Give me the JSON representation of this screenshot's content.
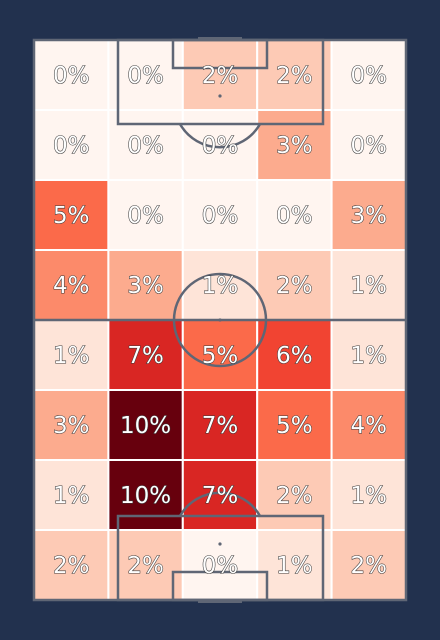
{
  "background_color": "#22314e",
  "line_color": "#5f6675",
  "grid_line_color": "#ffffff",
  "colormap": "Reds",
  "chart_data": {
    "type": "heatmap",
    "title": "",
    "rows": 8,
    "cols": 5,
    "value_format": "percent",
    "values": [
      [
        0,
        0,
        2,
        2,
        0
      ],
      [
        0,
        0,
        0,
        3,
        0
      ],
      [
        5,
        0,
        0,
        0,
        3
      ],
      [
        4,
        3,
        1,
        2,
        1
      ],
      [
        1,
        7,
        5,
        6,
        1
      ],
      [
        3,
        10,
        7,
        5,
        4
      ],
      [
        1,
        10,
        7,
        2,
        1
      ],
      [
        2,
        2,
        0,
        1,
        2
      ]
    ],
    "labels": [
      [
        "0%",
        "0%",
        "2%",
        "2%",
        "0%"
      ],
      [
        "0%",
        "0%",
        "0%",
        "3%",
        "0%"
      ],
      [
        "5%",
        "0%",
        "0%",
        "0%",
        "3%"
      ],
      [
        "4%",
        "3%",
        "1%",
        "2%",
        "1%"
      ],
      [
        "1%",
        "7%",
        "5%",
        "6%",
        "1%"
      ],
      [
        "3%",
        "10%",
        "7%",
        "5%",
        "4%"
      ],
      [
        "1%",
        "10%",
        "7%",
        "2%",
        "1%"
      ],
      [
        "2%",
        "2%",
        "0%",
        "1%",
        "2%"
      ]
    ],
    "value_range": [
      0,
      10
    ],
    "pitch": "vertical football pitch",
    "grid": true,
    "legend": "none"
  }
}
